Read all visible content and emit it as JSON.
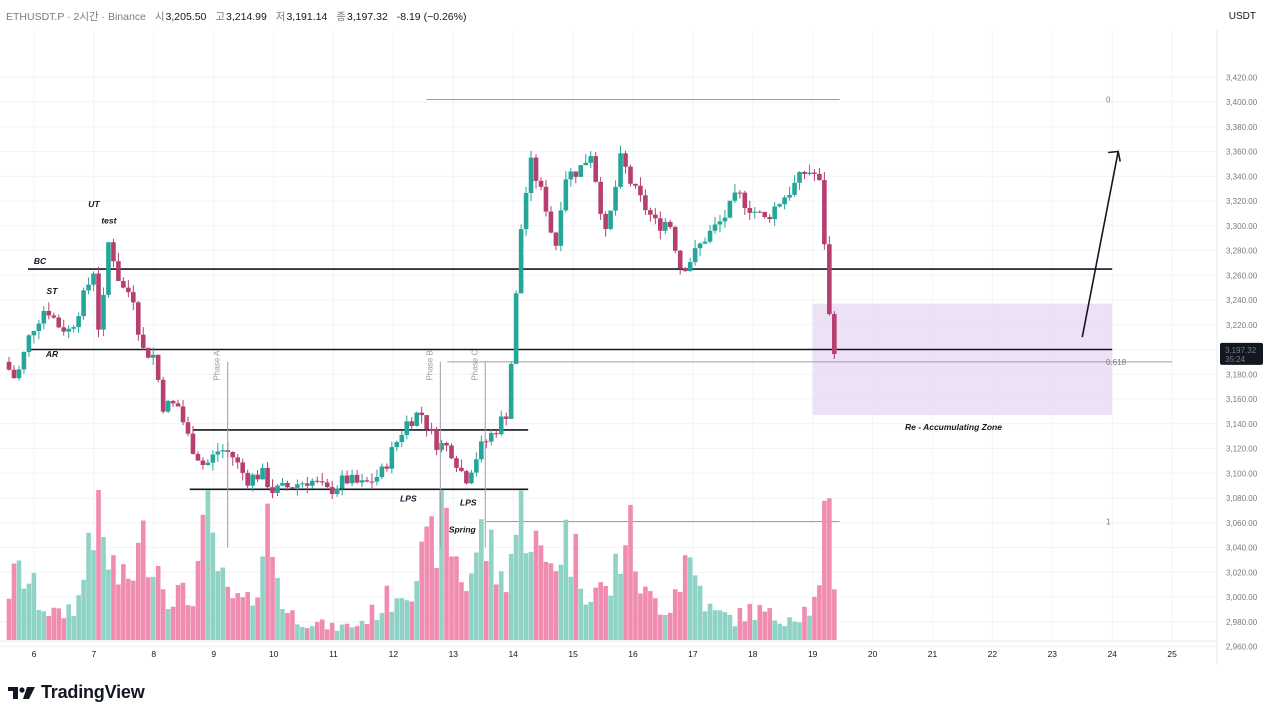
{
  "header": {
    "symbol": "ETHUSDT.P · 2시간 · Binance",
    "open_label": "시",
    "open": "3,205.50",
    "high_label": "고",
    "high": "3,214.99",
    "low_label": "저",
    "low": "3,191.14",
    "close_label": "종",
    "close": "3,197.32",
    "change": "-8.19 (−0.26%)"
  },
  "currency": "USDT",
  "logo": {
    "text": "TradingView"
  },
  "colors": {
    "up": "#26a69a",
    "down": "#b53f6f",
    "up_volume": "#8fd2c6",
    "down_volume": "#f08cb0",
    "zone": "#eadcf5",
    "fib": "#9c27b0"
  },
  "chart_data": {
    "type": "candlestick",
    "ylim": [
      2950,
      3430
    ],
    "yticks": [
      "3,420.00",
      "3,400.00",
      "3,380.00",
      "3,360.00",
      "3,340.00",
      "3,320.00",
      "3,300.00",
      "3,280.00",
      "3,260.00",
      "3,240.00",
      "3,220.00",
      "3,200.00",
      "3,180.00",
      "3,160.00",
      "3,140.00",
      "3,120.00",
      "3,100.00",
      "3,080.00",
      "3,060.00",
      "3,040.00",
      "3,020.00",
      "3,000.00",
      "2,980.00",
      "2,960.00"
    ],
    "xticks": [
      "6",
      "7",
      "8",
      "9",
      "10",
      "11",
      "12",
      "13",
      "14",
      "15",
      "16",
      "17",
      "18",
      "19",
      "20",
      "21",
      "22",
      "23",
      "24",
      "25"
    ],
    "last_price": {
      "label": "3,197.32",
      "countdown": "35:24"
    },
    "price_path": [
      [
        5.5,
        3190
      ],
      [
        5.7,
        3175
      ],
      [
        5.95,
        3215
      ],
      [
        6.2,
        3235
      ],
      [
        6.4,
        3220
      ],
      [
        6.6,
        3215
      ],
      [
        6.85,
        3245
      ],
      [
        7.0,
        3265
      ],
      [
        7.1,
        3205
      ],
      [
        7.25,
        3290
      ],
      [
        7.45,
        3250
      ],
      [
        7.65,
        3245
      ],
      [
        7.8,
        3200
      ],
      [
        8.0,
        3195
      ],
      [
        8.15,
        3155
      ],
      [
        8.4,
        3155
      ],
      [
        8.6,
        3125
      ],
      [
        8.85,
        3105
      ],
      [
        9.1,
        3120
      ],
      [
        9.3,
        3115
      ],
      [
        9.55,
        3095
      ],
      [
        9.8,
        3100
      ],
      [
        10.0,
        3085
      ],
      [
        10.3,
        3090
      ],
      [
        10.6,
        3095
      ],
      [
        10.9,
        3085
      ],
      [
        11.2,
        3095
      ],
      [
        11.5,
        3090
      ],
      [
        11.8,
        3100
      ],
      [
        12.0,
        3120
      ],
      [
        12.2,
        3140
      ],
      [
        12.45,
        3150
      ],
      [
        12.7,
        3125
      ],
      [
        12.95,
        3120
      ],
      [
        13.2,
        3095
      ],
      [
        13.45,
        3120
      ],
      [
        13.7,
        3135
      ],
      [
        13.9,
        3150
      ],
      [
        14.0,
        3210
      ],
      [
        14.15,
        3310
      ],
      [
        14.3,
        3350
      ],
      [
        14.55,
        3315
      ],
      [
        14.7,
        3280
      ],
      [
        14.85,
        3340
      ],
      [
        15.1,
        3345
      ],
      [
        15.3,
        3360
      ],
      [
        15.55,
        3290
      ],
      [
        15.8,
        3355
      ],
      [
        16.0,
        3330
      ],
      [
        16.2,
        3315
      ],
      [
        16.4,
        3300
      ],
      [
        16.6,
        3305
      ],
      [
        16.8,
        3265
      ],
      [
        17.0,
        3275
      ],
      [
        17.2,
        3290
      ],
      [
        17.5,
        3305
      ],
      [
        17.75,
        3325
      ],
      [
        17.95,
        3315
      ],
      [
        18.2,
        3305
      ],
      [
        18.45,
        3320
      ],
      [
        18.65,
        3330
      ],
      [
        18.9,
        3345
      ],
      [
        19.1,
        3340
      ],
      [
        19.2,
        3285
      ],
      [
        19.3,
        3210
      ],
      [
        19.4,
        3197
      ]
    ],
    "volume_path": [
      [
        5.5,
        30
      ],
      [
        5.8,
        45
      ],
      [
        6.1,
        25
      ],
      [
        6.4,
        15
      ],
      [
        6.8,
        28
      ],
      [
        6.95,
        90
      ],
      [
        7.2,
        55
      ],
      [
        7.5,
        35
      ],
      [
        7.9,
        68
      ],
      [
        8.2,
        35
      ],
      [
        8.6,
        25
      ],
      [
        8.9,
        75
      ],
      [
        9.2,
        28
      ],
      [
        9.6,
        22
      ],
      [
        9.9,
        75
      ],
      [
        10.2,
        18
      ],
      [
        10.6,
        12
      ],
      [
        11.0,
        8
      ],
      [
        11.4,
        10
      ],
      [
        11.8,
        22
      ],
      [
        12.0,
        30
      ],
      [
        12.3,
        42
      ],
      [
        12.6,
        55
      ],
      [
        12.8,
        85
      ],
      [
        13.2,
        35
      ],
      [
        13.5,
        70
      ],
      [
        13.8,
        38
      ],
      [
        14.2,
        88
      ],
      [
        14.5,
        45
      ],
      [
        14.9,
        68
      ],
      [
        15.2,
        38
      ],
      [
        15.6,
        30
      ],
      [
        15.9,
        75
      ],
      [
        16.2,
        28
      ],
      [
        16.6,
        22
      ],
      [
        16.9,
        55
      ],
      [
        17.3,
        18
      ],
      [
        17.7,
        14
      ],
      [
        18.0,
        20
      ],
      [
        18.4,
        14
      ],
      [
        18.8,
        18
      ],
      [
        19.1,
        25
      ],
      [
        19.25,
        90
      ],
      [
        19.4,
        20
      ]
    ],
    "levels": {
      "bc_line": 3265,
      "ar_line": 3200,
      "trading_range_top": 3135,
      "trading_range_bottom": 3087,
      "fib_0": 3402,
      "fib_0618": 3190,
      "fib_1": 3061
    },
    "zone": {
      "label": "Re - Accumulating Zone",
      "top": 3237,
      "bottom": 3147,
      "x_from": "19",
      "x_to": "24"
    },
    "fib_labels": [
      "0",
      "0.618",
      "1"
    ],
    "annotations": [
      "UT",
      "test",
      "BC",
      "ST",
      "AR",
      "LPS",
      "LPS",
      "Spring"
    ],
    "phases": [
      "Phase A",
      "Phase B",
      "Phase C"
    ],
    "projection": {
      "from": [
        23.5,
        3210
      ],
      "to": [
        24.1,
        3360
      ]
    }
  }
}
